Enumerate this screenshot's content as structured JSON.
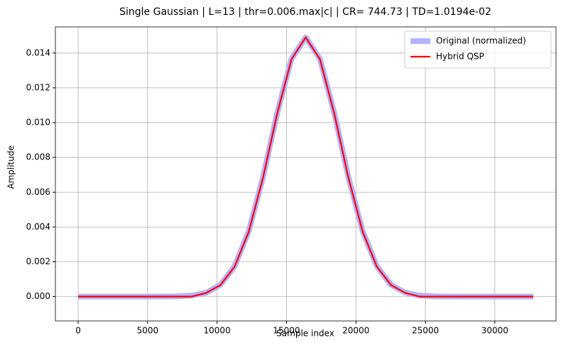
{
  "chart_data": {
    "type": "line",
    "title": "Single Gaussian | L=13 | thr=0.006.max|c| | CR= 744.73 | TD=1.0194e-02",
    "x_label": "Sample index",
    "y_label": "Amplitude",
    "x": [
      0,
      1024,
      2048,
      3072,
      4096,
      5120,
      6144,
      7168,
      8192,
      9216,
      10240,
      11264,
      12288,
      13312,
      14336,
      15360,
      16384,
      17408,
      18432,
      19456,
      20480,
      21504,
      22528,
      23552,
      24576,
      25600,
      26624,
      27648,
      28672,
      29696,
      30720,
      31744,
      32767
    ],
    "series": [
      {
        "name": "Original (normalized)",
        "color": "#b3b3ff",
        "width": 8,
        "values": [
          0,
          0,
          0,
          0,
          0,
          0,
          3e-06,
          1.4e-05,
          6.1e-05,
          0.000221,
          0.000675,
          0.00174,
          0.00377,
          0.00687,
          0.01057,
          0.01367,
          0.0149,
          0.01367,
          0.01057,
          0.00687,
          0.00377,
          0.00174,
          0.000675,
          0.000221,
          6.1e-05,
          1.4e-05,
          3e-06,
          0,
          0,
          0,
          0,
          0,
          0
        ]
      },
      {
        "name": "Hybrid QSP",
        "color": "#ff0000",
        "width": 2.2,
        "values": [
          0,
          0,
          0,
          0,
          0,
          0,
          0,
          0,
          0,
          0.00021,
          0.00066,
          0.00172,
          0.00374,
          0.00684,
          0.01054,
          0.01364,
          0.0149,
          0.01364,
          0.01054,
          0.00684,
          0.00374,
          0.00172,
          0.00066,
          0.00021,
          0,
          0,
          0,
          0,
          0,
          0,
          0,
          0,
          0
        ]
      }
    ],
    "xlim": [
      -1638,
      34405
    ],
    "ylim": [
      -0.0014,
      0.0155
    ],
    "xticks": [
      0,
      5000,
      10000,
      15000,
      20000,
      25000,
      30000
    ],
    "yticks": [
      {
        "value": 0,
        "label": "0.000"
      },
      {
        "value": 0.002,
        "label": "0.002"
      },
      {
        "value": 0.004,
        "label": "0.004"
      },
      {
        "value": 0.006,
        "label": "0.006"
      },
      {
        "value": 0.008,
        "label": "0.008"
      },
      {
        "value": 0.01,
        "label": "0.010"
      },
      {
        "value": 0.012,
        "label": "0.012"
      },
      {
        "value": 0.014,
        "label": "0.014"
      }
    ],
    "grid": true,
    "legend": "upper right"
  }
}
